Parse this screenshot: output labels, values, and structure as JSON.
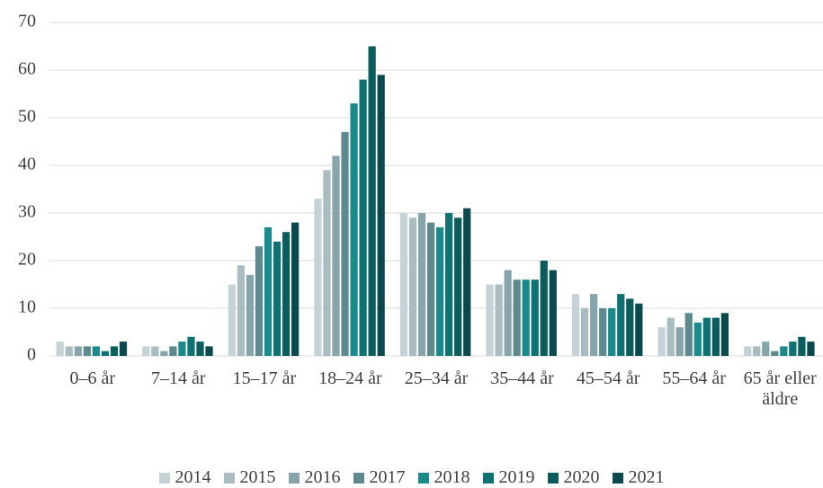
{
  "chart_data": {
    "type": "bar",
    "categories": [
      "0–6 år",
      "7–14 år",
      "15–17 år",
      "18–24 år",
      "25–34 år",
      "35–44 år",
      "45–54 år",
      "55–64 år",
      "65 år eller äldre"
    ],
    "series": [
      {
        "name": "2014",
        "color": "#c5d3d6",
        "values": [
          3,
          2,
          15,
          33,
          30,
          15,
          13,
          6,
          2
        ]
      },
      {
        "name": "2015",
        "color": "#a9bcc0",
        "values": [
          2,
          2,
          19,
          39,
          29,
          15,
          10,
          8,
          2
        ]
      },
      {
        "name": "2016",
        "color": "#86a5aa",
        "values": [
          2,
          1,
          17,
          42,
          30,
          18,
          13,
          6,
          3
        ]
      },
      {
        "name": "2017",
        "color": "#5e8a8f",
        "values": [
          2,
          2,
          23,
          47,
          28,
          16,
          10,
          9,
          1
        ]
      },
      {
        "name": "2018",
        "color": "#1a8a8a",
        "values": [
          2,
          3,
          27,
          53,
          27,
          16,
          10,
          7,
          2
        ]
      },
      {
        "name": "2019",
        "color": "#0f7272",
        "values": [
          1,
          4,
          24,
          58,
          30,
          16,
          13,
          8,
          3
        ]
      },
      {
        "name": "2020",
        "color": "#0b5c5c",
        "values": [
          2,
          3,
          26,
          65,
          29,
          20,
          12,
          8,
          4
        ]
      },
      {
        "name": "2021",
        "color": "#0a4a4f",
        "values": [
          3,
          2,
          28,
          59,
          31,
          18,
          11,
          9,
          3
        ]
      }
    ],
    "ylim": [
      0,
      70
    ],
    "yticks": [
      0,
      10,
      20,
      30,
      40,
      50,
      60,
      70
    ],
    "grid": true,
    "legend": "bottom"
  }
}
